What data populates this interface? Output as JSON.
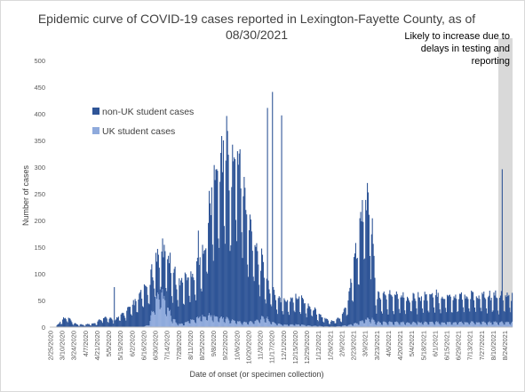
{
  "chart_data": {
    "type": "bar",
    "stacked": true,
    "title_line1": "Epidemic curve of COVID-19 cases reported in Lexington-Fayette County, as of",
    "title_line2": "08/30/2021",
    "xlabel": "Date of onset (or specimen collection)",
    "ylabel": "Number of cases",
    "ylim": [
      0,
      500
    ],
    "yticks": [
      0,
      50,
      100,
      150,
      200,
      250,
      300,
      350,
      400,
      450,
      500
    ],
    "xtick_labels": [
      "2/25/2020",
      "3/10/2020",
      "3/24/2020",
      "4/7/2020",
      "4/21/2020",
      "5/5/2020",
      "5/19/2020",
      "6/2/2020",
      "6/16/2020",
      "6/30/2020",
      "7/14/2020",
      "7/28/2020",
      "8/11/2020",
      "8/25/2020",
      "9/8/2020",
      "9/22/2020",
      "10/6/2020",
      "10/20/2020",
      "11/3/2020",
      "11/17/2020",
      "12/1/2020",
      "12/15/2020",
      "12/29/2020",
      "1/12/2021",
      "1/26/2021",
      "2/9/2021",
      "2/23/2021",
      "3/9/2021",
      "3/23/2021",
      "4/6/2021",
      "4/20/2021",
      "5/4/2021",
      "5/18/2021",
      "6/1/2021",
      "6/15/2021",
      "6/29/2021",
      "7/13/2021",
      "7/27/2021",
      "8/10/2021",
      "8/24/2021"
    ],
    "series": [
      {
        "name": "non-UK student cases",
        "color": "#2f5597"
      },
      {
        "name": "UK student cases",
        "color": "#8faadc"
      }
    ],
    "weekly_total_values": [
      0,
      1,
      12,
      16,
      6,
      4,
      4,
      6,
      7,
      17,
      14,
      11,
      19,
      25,
      35,
      45,
      60,
      68,
      110,
      120,
      125,
      95,
      70,
      78,
      85,
      95,
      115,
      165,
      240,
      260,
      305,
      250,
      295,
      240,
      165,
      150,
      110,
      85,
      62,
      48,
      42,
      44,
      52,
      48,
      36,
      32,
      22,
      14,
      10,
      12,
      18,
      40,
      95,
      150,
      210,
      180,
      50
    ],
    "weekly_uk_values": [
      0,
      0,
      0,
      0,
      0,
      0,
      0,
      0,
      0,
      0,
      0,
      0,
      0,
      0,
      0,
      0,
      0,
      5,
      45,
      58,
      38,
      15,
      5,
      6,
      12,
      14,
      18,
      20,
      18,
      16,
      15,
      12,
      10,
      8,
      8,
      10,
      14,
      16,
      8,
      6,
      4,
      4,
      5,
      4,
      3,
      2,
      2,
      1,
      1,
      1,
      2,
      3,
      5,
      8,
      12,
      14,
      8
    ],
    "peak_values": [
      75,
      181,
      441,
      411,
      397,
      296
    ],
    "shaded_region_note": "Likely to increase due to delays in testing and reporting"
  },
  "legend": {
    "non_uk_label": "non-UK student cases",
    "uk_label": "UK student cases"
  },
  "colors": {
    "non_uk": "#2f5597",
    "uk": "#8faadc",
    "shade": "#d9d9d9"
  }
}
